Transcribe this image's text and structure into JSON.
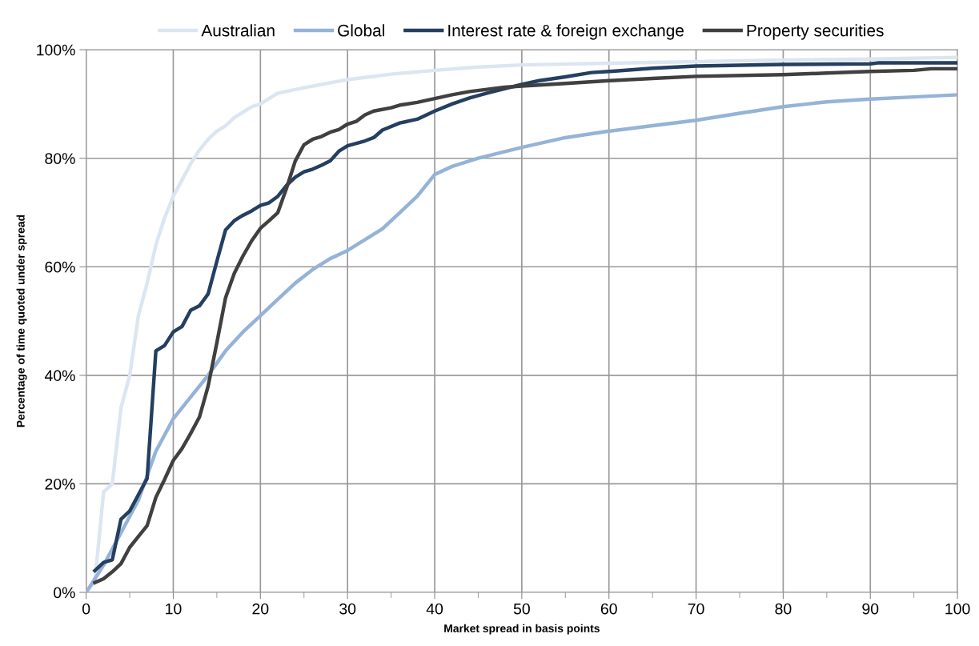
{
  "chart_data": {
    "type": "line",
    "xlabel": "Market spread in basis points",
    "ylabel": "Percentage of time quoted under spread",
    "xlim": [
      0,
      100
    ],
    "ylim": [
      0,
      100
    ],
    "xticks": [
      0,
      {
        "value": 5,
        "label": null
      },
      10,
      {
        "value": 15,
        "label": null
      },
      20,
      {
        "value": 25,
        "label": null
      },
      30,
      {
        "value": 35,
        "label": null
      },
      40,
      {
        "value": 45,
        "label": null
      },
      50,
      {
        "value": 55,
        "label": null
      },
      60,
      {
        "value": 65,
        "label": null
      },
      70,
      {
        "value": 75,
        "label": null
      },
      80,
      {
        "value": 85,
        "label": null
      },
      90,
      {
        "value": 95,
        "label": null
      },
      100
    ],
    "yticks": [
      {
        "value": 0,
        "label": "0%"
      },
      {
        "value": 20,
        "label": "20%"
      },
      {
        "value": 40,
        "label": "40%"
      },
      {
        "value": 60,
        "label": "60%"
      },
      {
        "value": 80,
        "label": "80%"
      },
      {
        "value": 100,
        "label": "100%"
      }
    ],
    "grid": true,
    "legend": "top",
    "marker": "none",
    "line_style": "solid",
    "series": [
      {
        "name": "Australian",
        "color": "#dce6f2",
        "x": [
          0,
          1,
          2,
          3,
          4,
          5,
          6,
          7,
          8,
          9,
          10,
          11,
          12,
          13,
          14,
          15,
          16,
          17,
          18,
          19,
          20,
          22,
          25,
          30,
          35,
          40,
          45,
          50,
          60,
          70,
          80,
          90,
          100
        ],
        "values": [
          0,
          2,
          18.5,
          20,
          34,
          40,
          51,
          57,
          64,
          69,
          73,
          76,
          79,
          81.5,
          83.5,
          85,
          86,
          87.5,
          88.5,
          89.5,
          90,
          92,
          93,
          94.5,
          95.5,
          96.2,
          96.8,
          97.2,
          97.5,
          97.8,
          98.1,
          98.3,
          98.6
        ]
      },
      {
        "name": "Global",
        "color": "#95b3d7",
        "x": [
          0,
          2,
          4,
          6,
          8,
          10,
          12,
          14,
          16,
          18,
          20,
          22,
          24,
          26,
          28,
          30,
          32,
          34,
          36,
          38,
          40,
          42,
          45,
          50,
          55,
          60,
          65,
          70,
          75,
          80,
          85,
          90,
          95,
          100
        ],
        "values": [
          0,
          5,
          11,
          17,
          26,
          32,
          36,
          40,
          44.5,
          48,
          51,
          54,
          57,
          59.5,
          61.5,
          63,
          65,
          67,
          70,
          73,
          77,
          78.5,
          80,
          82,
          83.8,
          85,
          86,
          87,
          88.3,
          89.5,
          90.4,
          90.9,
          91.3,
          91.7
        ]
      },
      {
        "name": "Interest rate & foreign exchange",
        "color": "#243f60",
        "x": [
          1,
          2,
          3,
          4,
          5,
          6,
          7,
          8,
          9,
          10,
          11,
          12,
          13,
          14,
          15,
          16,
          17,
          18,
          19,
          20,
          21,
          22,
          23,
          24,
          25,
          26,
          27,
          28,
          29,
          30,
          32,
          33,
          34,
          36,
          38,
          40,
          42,
          44,
          46,
          48,
          50,
          52,
          55,
          58,
          60,
          65,
          70,
          80,
          90,
          91,
          100
        ],
        "values": [
          4,
          5.5,
          6,
          13.5,
          15,
          18,
          21,
          44.5,
          45.5,
          48,
          49,
          52,
          52.8,
          55,
          61,
          66.8,
          68.5,
          69.5,
          70.3,
          71.3,
          71.8,
          73,
          75,
          76.5,
          77.5,
          78,
          78.7,
          79.5,
          81.3,
          82.3,
          83.2,
          83.8,
          85.2,
          86.5,
          87.2,
          88.7,
          90,
          91.1,
          92,
          92.8,
          93.6,
          94.3,
          95,
          95.8,
          96,
          96.6,
          97,
          97.3,
          97.4,
          97.6,
          97.6
        ]
      },
      {
        "name": "Property securities",
        "color": "#404040",
        "x": [
          1,
          2,
          3,
          4,
          5,
          6,
          7,
          8,
          9,
          10,
          11,
          12,
          13,
          14,
          15,
          16,
          17,
          18,
          19,
          20,
          21,
          22,
          23,
          24,
          25,
          26,
          27,
          28,
          29,
          30,
          31,
          32,
          33,
          35,
          36,
          38,
          40,
          42,
          44,
          46,
          48,
          50,
          55,
          60,
          65,
          70,
          80,
          85,
          90,
          95,
          97,
          100
        ],
        "values": [
          1.8,
          2.5,
          3.8,
          5.3,
          8.3,
          10.3,
          12.3,
          17.5,
          20.8,
          24.3,
          26.5,
          29.3,
          32.3,
          38,
          46,
          54.3,
          58.8,
          62,
          64.8,
          67.1,
          68.5,
          70,
          74.5,
          79.5,
          82.5,
          83.5,
          84,
          84.8,
          85.3,
          86.3,
          86.8,
          88,
          88.7,
          89.3,
          89.8,
          90.3,
          91,
          91.7,
          92.3,
          92.7,
          93.1,
          93.3,
          93.8,
          94.3,
          94.7,
          95.1,
          95.4,
          95.7,
          96,
          96.2,
          96.5,
          96.5
        ]
      }
    ]
  }
}
